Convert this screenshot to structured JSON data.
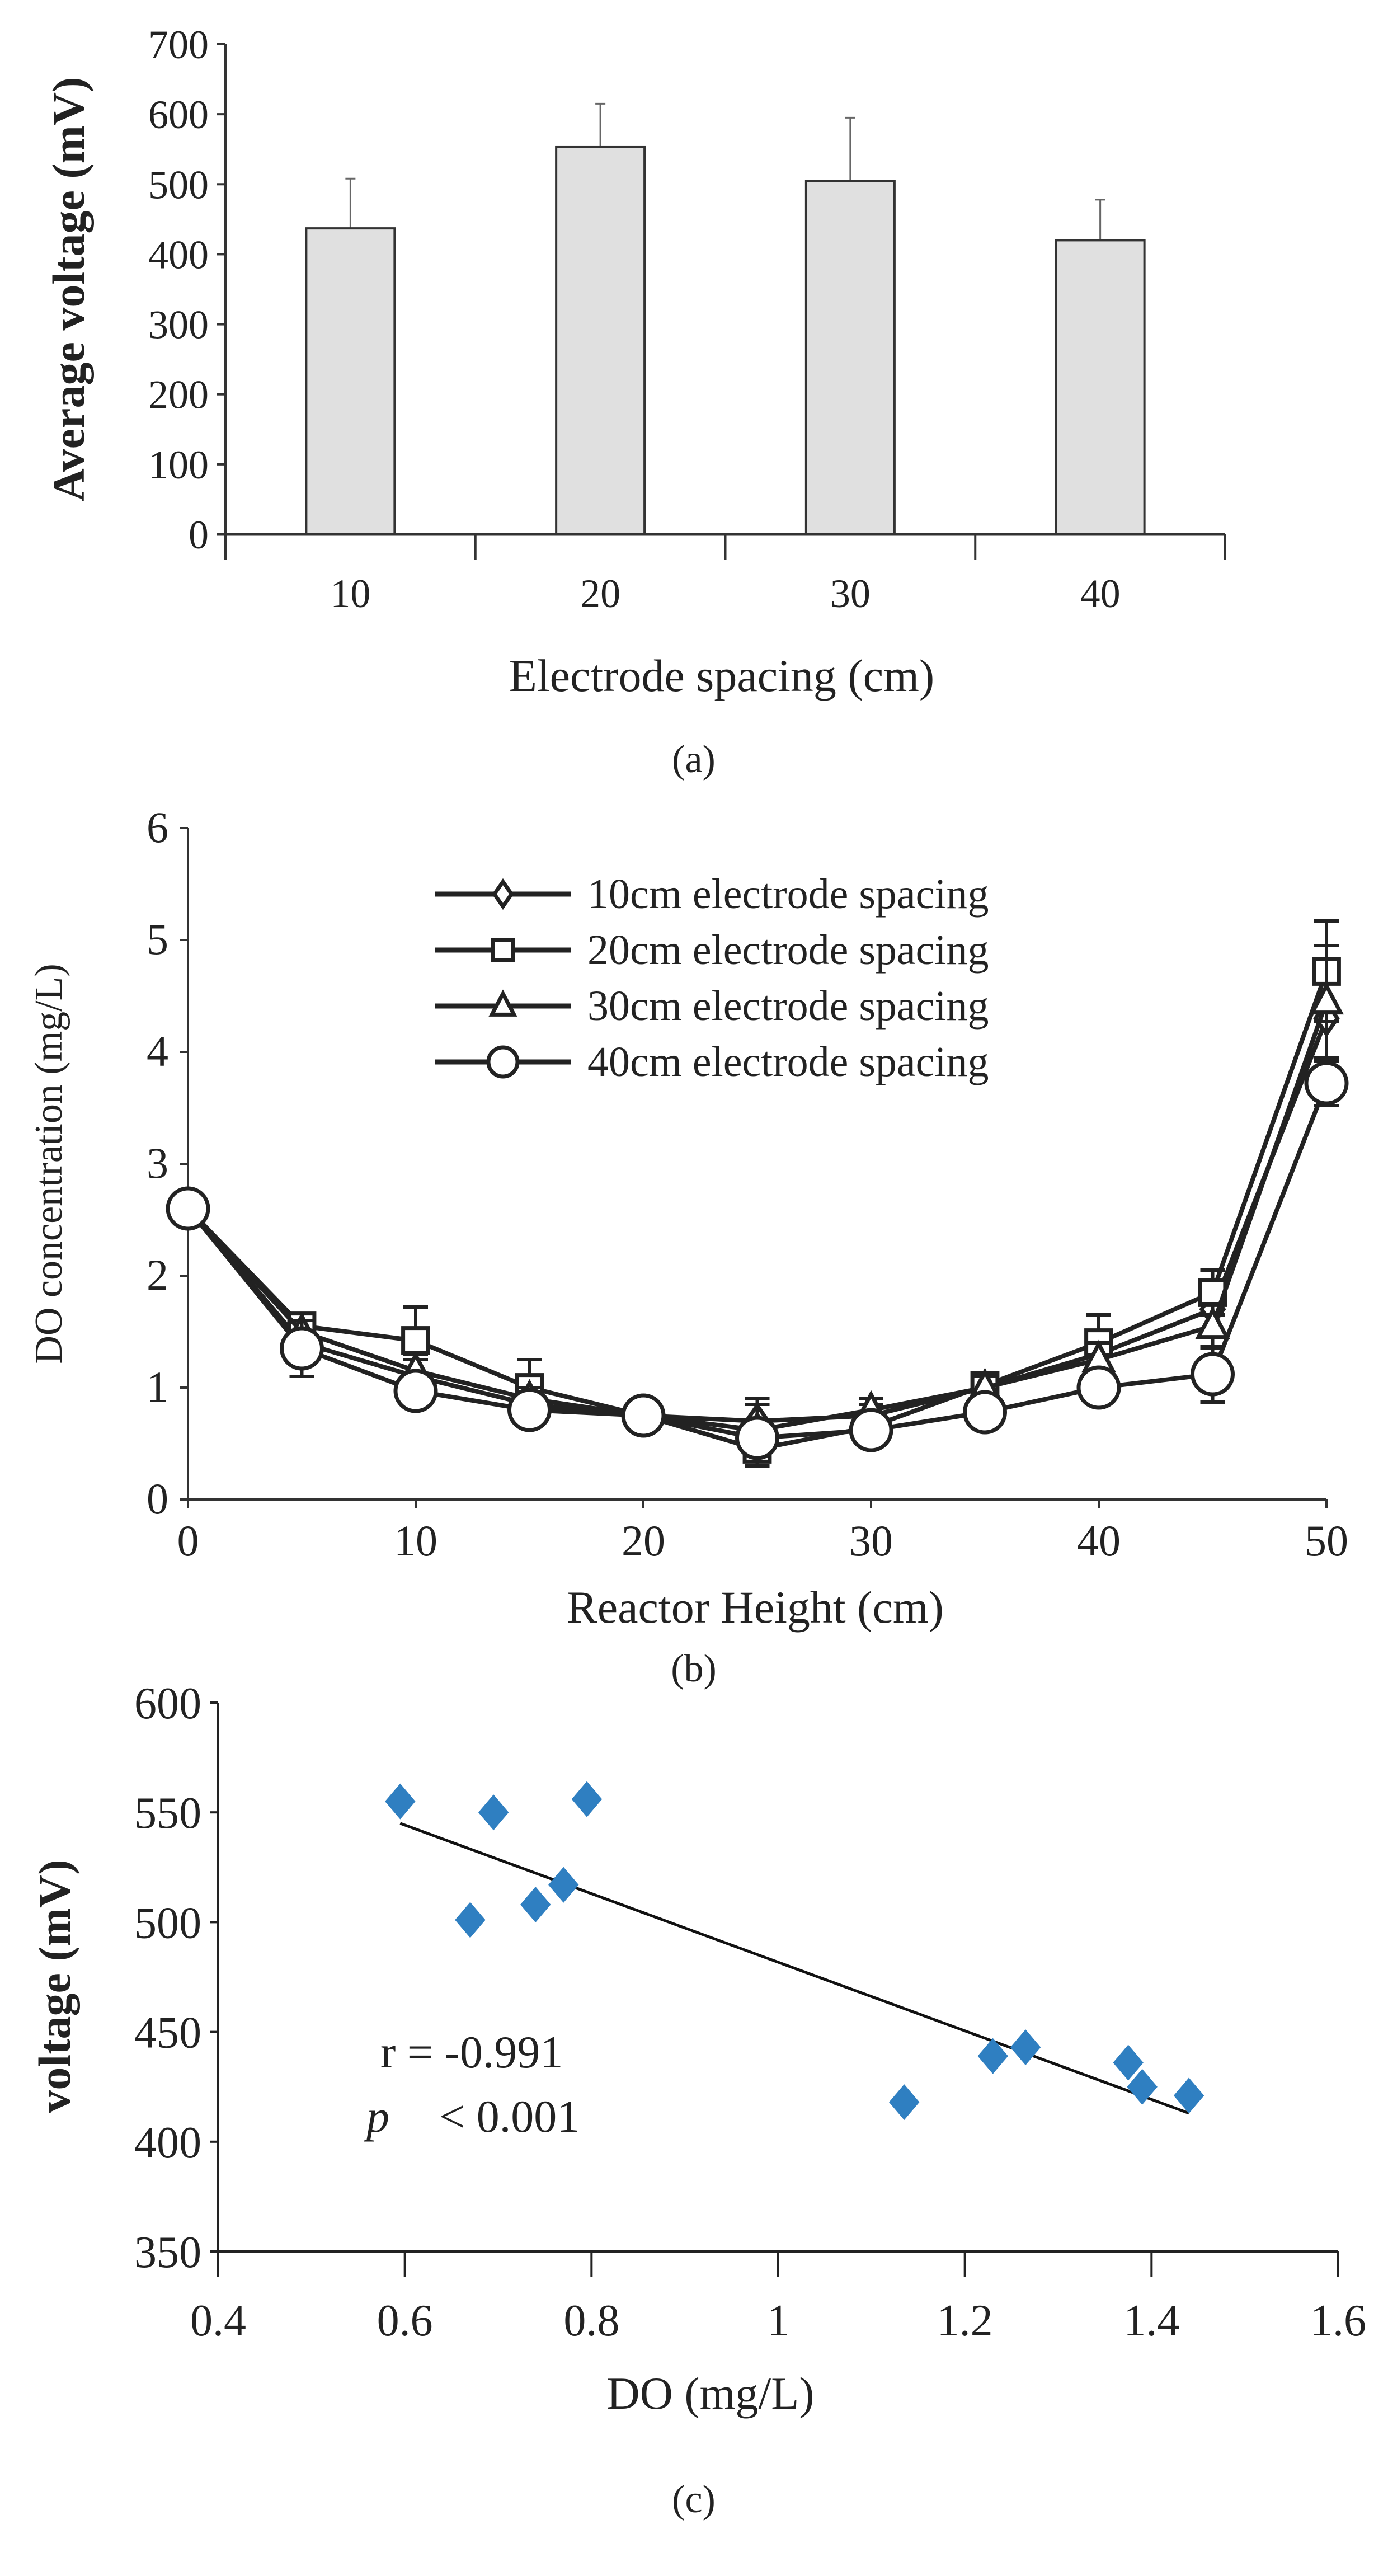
{
  "chart_data": [
    {
      "panel_label": "(a)",
      "type": "bar",
      "title": "",
      "xlabel": "Electrode spacing (cm)",
      "ylabel": "Average voltage (mV)",
      "ylim": [
        0,
        700
      ],
      "yticks": [
        "0",
        "100",
        "200",
        "300",
        "400",
        "500",
        "600",
        "700"
      ],
      "categories": [
        "10",
        "20",
        "30",
        "40"
      ],
      "values": [
        437,
        553,
        505,
        420
      ],
      "error_upper": [
        508,
        615,
        595,
        478
      ],
      "bar_color": "#e0e0e0"
    },
    {
      "panel_label": "(b)",
      "type": "line",
      "xlabel": "Reactor Height (cm)",
      "ylabel": "DO concentration (mg/L)",
      "xlim": [
        0,
        50
      ],
      "ylim": [
        0,
        6
      ],
      "xticks": [
        "0",
        "10",
        "20",
        "30",
        "40",
        "50"
      ],
      "yticks": [
        "0",
        "1",
        "2",
        "3",
        "4",
        "5",
        "6"
      ],
      "legend_position": "top-center",
      "x": [
        0,
        5,
        10,
        15,
        20,
        25,
        30,
        35,
        40,
        45,
        50
      ],
      "series": [
        {
          "name": "10cm electrode spacing",
          "marker": "diamond",
          "values": [
            2.6,
            1.4,
            1.1,
            0.85,
            0.75,
            0.7,
            0.75,
            1.0,
            1.3,
            1.7,
            4.3
          ],
          "errors": [
            0,
            0.1,
            0.15,
            0.1,
            0.1,
            0.15,
            0.1,
            0.1,
            0.15,
            0.2,
            0.5
          ]
        },
        {
          "name": "20cm electrode spacing",
          "marker": "square",
          "values": [
            2.6,
            1.55,
            1.42,
            1.0,
            0.75,
            0.45,
            0.65,
            1.02,
            1.4,
            1.85,
            4.72
          ],
          "errors": [
            0,
            0.1,
            0.3,
            0.25,
            0.1,
            0.15,
            0.1,
            0.1,
            0.25,
            0.2,
            0.45
          ]
        },
        {
          "name": "30cm electrode spacing",
          "marker": "triangle",
          "values": [
            2.6,
            1.5,
            1.15,
            0.9,
            0.75,
            0.62,
            0.8,
            1.0,
            1.25,
            1.55,
            4.45
          ],
          "errors": [
            0,
            0.1,
            0.15,
            0.1,
            0.1,
            0.28,
            0.1,
            0.1,
            0.15,
            0.2,
            0.5
          ]
        },
        {
          "name": "40cm electrode spacing",
          "marker": "circle",
          "values": [
            2.6,
            1.35,
            0.97,
            0.8,
            0.75,
            0.55,
            0.62,
            0.78,
            1.0,
            1.12,
            3.72
          ],
          "errors": [
            0,
            0.25,
            0.1,
            0.1,
            0.1,
            0.1,
            0.1,
            0.1,
            0.1,
            0.25,
            0.2
          ]
        }
      ]
    },
    {
      "panel_label": "(c)",
      "type": "scatter",
      "xlabel": "DO (mg/L)",
      "ylabel": "voltage (mV)",
      "xlim": [
        0.4,
        1.6
      ],
      "ylim": [
        350,
        600
      ],
      "xticks": [
        "0.4",
        "0.6",
        "0.8",
        "1",
        "1.2",
        "1.4",
        "1.6"
      ],
      "yticks": [
        "350",
        "400",
        "450",
        "500",
        "550",
        "600"
      ],
      "points": [
        [
          0.595,
          555
        ],
        [
          0.695,
          550
        ],
        [
          0.795,
          556
        ],
        [
          0.67,
          501
        ],
        [
          0.74,
          508
        ],
        [
          0.77,
          517
        ],
        [
          1.135,
          418
        ],
        [
          1.23,
          439
        ],
        [
          1.265,
          443
        ],
        [
          1.375,
          436
        ],
        [
          1.39,
          425
        ],
        [
          1.44,
          421
        ]
      ],
      "trendline": [
        [
          0.595,
          545
        ],
        [
          1.44,
          413
        ]
      ],
      "marker_color": "#2f7fc1",
      "annotation_r": "r = -0.991",
      "annotation_p_symbol": "p",
      "annotation_p_value": "< 0.001"
    }
  ]
}
